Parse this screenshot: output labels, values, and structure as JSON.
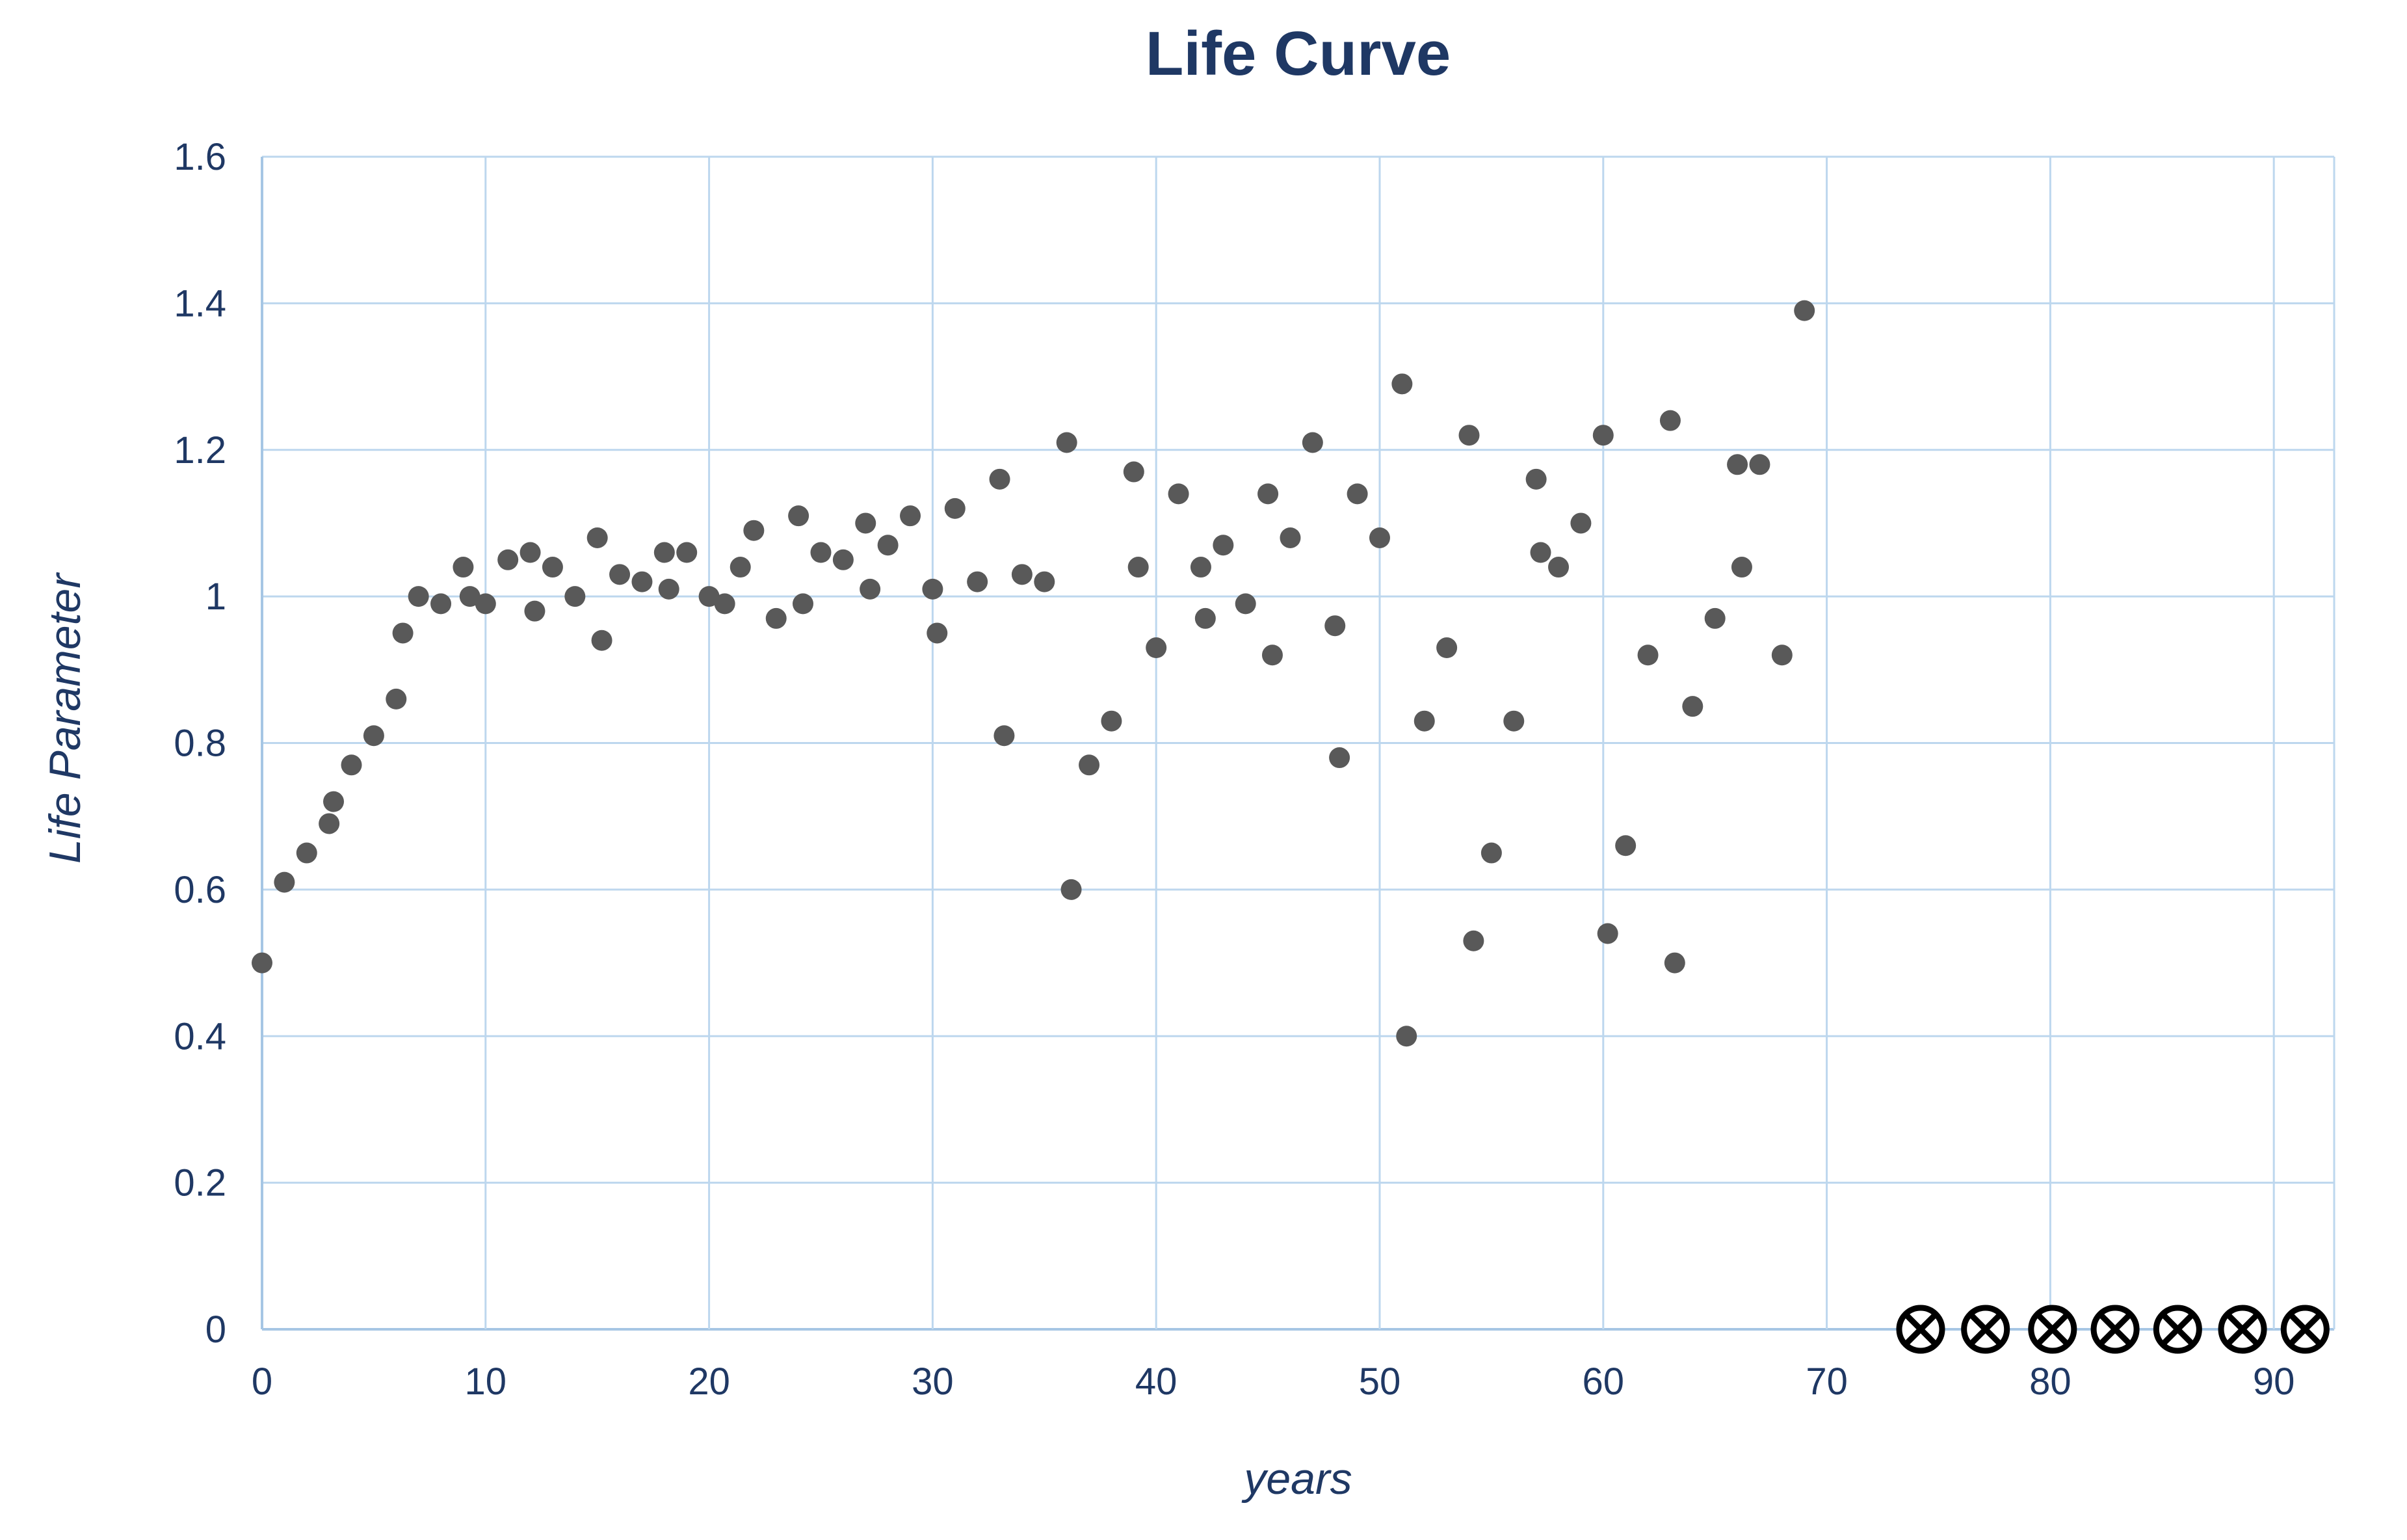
{
  "page": {
    "background": "#FFFFFF"
  },
  "chart_data": {
    "type": "scatter",
    "title": "Life Curve",
    "xlabel": "years",
    "ylabel": "Life Parameter",
    "xlim": [
      0,
      92.7
    ],
    "ylim": [
      0,
      1.6
    ],
    "xticks": [
      0,
      10,
      20,
      30,
      40,
      50,
      60,
      70,
      80,
      90
    ],
    "yticks": [
      0,
      0.2,
      0.4,
      0.6,
      0.8,
      1.0,
      1.2,
      1.4,
      1.6
    ],
    "ytick_labels": [
      "0",
      "0.2",
      "0.4",
      "0.6",
      "0.8",
      "1",
      "1.2",
      "1.4",
      "1.6"
    ],
    "grid": true,
    "legend_position": "none",
    "colors": {
      "title_text": "#1F3864",
      "tick_text": "#1F3864",
      "gridline": "#BDD7EE",
      "axis_line": "#A6C6E4",
      "dot": "#595959",
      "censored_marker": "#000000",
      "background": "#FFFFFF"
    },
    "series": [
      {
        "name": "Life Parameter",
        "marker": "circle",
        "color": "#595959",
        "points": [
          [
            0,
            0.5
          ],
          [
            1,
            0.61
          ],
          [
            2,
            0.65
          ],
          [
            3,
            0.69
          ],
          [
            3.2,
            0.72
          ],
          [
            4,
            0.77
          ],
          [
            5,
            0.81
          ],
          [
            6,
            0.86
          ],
          [
            6.3,
            0.95
          ],
          [
            7,
            1.0
          ],
          [
            8,
            0.99
          ],
          [
            9,
            1.04
          ],
          [
            9.3,
            1.0
          ],
          [
            10,
            0.99
          ],
          [
            11,
            1.05
          ],
          [
            12,
            1.06
          ],
          [
            12.2,
            0.98
          ],
          [
            13,
            1.04
          ],
          [
            14,
            1.0
          ],
          [
            15,
            1.08
          ],
          [
            15.2,
            0.94
          ],
          [
            16,
            1.03
          ],
          [
            17,
            1.02
          ],
          [
            18,
            1.06
          ],
          [
            18.2,
            1.01
          ],
          [
            19,
            1.06
          ],
          [
            20,
            1.0
          ],
          [
            20.7,
            0.99
          ],
          [
            21.4,
            1.04
          ],
          [
            22,
            1.09
          ],
          [
            23,
            0.97
          ],
          [
            24,
            1.11
          ],
          [
            24.2,
            0.99
          ],
          [
            25,
            1.06
          ],
          [
            26,
            1.05
          ],
          [
            27,
            1.1
          ],
          [
            27.2,
            1.01
          ],
          [
            28,
            1.07
          ],
          [
            29,
            1.11
          ],
          [
            30,
            1.01
          ],
          [
            30.2,
            0.95
          ],
          [
            31,
            1.12
          ],
          [
            32,
            1.02
          ],
          [
            33,
            1.16
          ],
          [
            33.2,
            0.81
          ],
          [
            34,
            1.03
          ],
          [
            35,
            1.02
          ],
          [
            36,
            1.21
          ],
          [
            36.2,
            0.6
          ],
          [
            37,
            0.77
          ],
          [
            38,
            0.83
          ],
          [
            39,
            1.17
          ],
          [
            39.2,
            1.04
          ],
          [
            40,
            0.93
          ],
          [
            41,
            1.14
          ],
          [
            42,
            1.04
          ],
          [
            42.2,
            0.97
          ],
          [
            43,
            1.07
          ],
          [
            44,
            0.99
          ],
          [
            45,
            1.14
          ],
          [
            45.2,
            0.92
          ],
          [
            46,
            1.08
          ],
          [
            47,
            1.21
          ],
          [
            48,
            0.96
          ],
          [
            48.2,
            0.78
          ],
          [
            49,
            1.14
          ],
          [
            50,
            1.08
          ],
          [
            51,
            1.29
          ],
          [
            51.2,
            0.4
          ],
          [
            52,
            0.83
          ],
          [
            53,
            0.93
          ],
          [
            54,
            1.22
          ],
          [
            54.2,
            0.53
          ],
          [
            55,
            0.65
          ],
          [
            56,
            0.83
          ],
          [
            57,
            1.16
          ],
          [
            57.2,
            1.06
          ],
          [
            58,
            1.04
          ],
          [
            59,
            1.1
          ],
          [
            60,
            1.22
          ],
          [
            60.2,
            0.54
          ],
          [
            61,
            0.66
          ],
          [
            62,
            0.92
          ],
          [
            63,
            1.24
          ],
          [
            63.2,
            0.5
          ],
          [
            64,
            0.85
          ],
          [
            65,
            0.97
          ],
          [
            66,
            1.18
          ],
          [
            66.2,
            1.04
          ],
          [
            67,
            1.18
          ],
          [
            68,
            0.92
          ],
          [
            69,
            1.39
          ]
        ]
      },
      {
        "name": "end-of-life markers",
        "marker": "circled-x",
        "color": "#000000",
        "points": [
          [
            74.2,
            0
          ],
          [
            77.1,
            0
          ],
          [
            80.1,
            0
          ],
          [
            82.9,
            0
          ],
          [
            85.7,
            0
          ],
          [
            88.6,
            0
          ],
          [
            91.4,
            0
          ]
        ]
      }
    ]
  }
}
